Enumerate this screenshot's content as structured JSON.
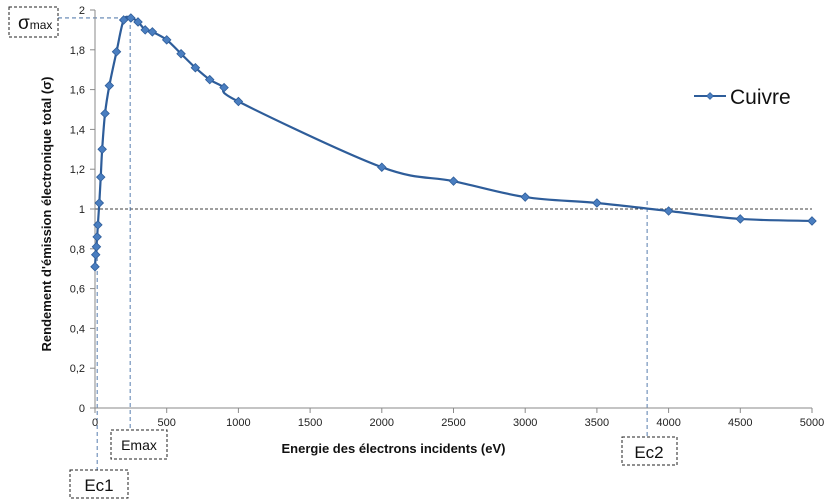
{
  "chart_data": {
    "type": "line",
    "title": "",
    "xlabel": "Energie des électrons incidents (eV)",
    "ylabel": "Rendement d'émission électronique total (σ)",
    "xlim": [
      0,
      5000
    ],
    "ylim": [
      0,
      2
    ],
    "xticks": [
      0,
      500,
      1000,
      1500,
      2000,
      2500,
      3000,
      3500,
      4000,
      4500,
      5000
    ],
    "yticks": [
      0,
      0.2,
      0.4,
      0.6,
      0.8,
      1,
      1.2,
      1.4,
      1.6,
      1.8,
      2
    ],
    "xtick_labels": [
      "0",
      "500",
      "1000",
      "1500",
      "2000",
      "2500",
      "3000",
      "3500",
      "4000",
      "4500",
      "5000"
    ],
    "ytick_labels": [
      "0",
      "0,2",
      "0,4",
      "0,6",
      "0,8",
      "1",
      "1,2",
      "1,4",
      "1,6",
      "1,8",
      "2"
    ],
    "grid": false,
    "legend_position": "right",
    "series": [
      {
        "name": "Cuivre",
        "color": "#2e5d9a",
        "marker_color": "#4a7ec0",
        "x": [
          0,
          5,
          10,
          15,
          20,
          30,
          40,
          50,
          70,
          100,
          150,
          200,
          250,
          300,
          350,
          400,
          500,
          600,
          700,
          800,
          900,
          1000,
          2000,
          2500,
          3000,
          3500,
          4000,
          4500,
          5000
        ],
        "y": [
          0.71,
          0.77,
          0.81,
          0.86,
          0.92,
          1.03,
          1.16,
          1.3,
          1.48,
          1.62,
          1.79,
          1.95,
          1.96,
          1.94,
          1.9,
          1.89,
          1.85,
          1.78,
          1.71,
          1.65,
          1.61,
          1.54,
          1.21,
          1.14,
          1.06,
          1.03,
          0.99,
          0.95,
          0.94
        ]
      }
    ],
    "reference_line": {
      "y": 1,
      "style": "dashed",
      "color": "#000000"
    },
    "annotations": {
      "sigma_max": {
        "symbol": "σ",
        "subscript": "max",
        "value": 1.96
      },
      "emax": {
        "label": "Emax",
        "x": 245
      },
      "ec1": {
        "label": "Ec1",
        "x": 15
      },
      "ec2": {
        "label": "Ec2",
        "x": 3850
      }
    }
  }
}
